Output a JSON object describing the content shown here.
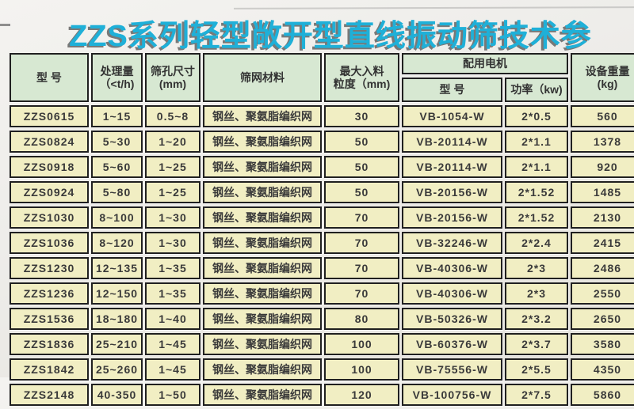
{
  "title": "ZZS系列轻型敞开型直线振动筛技术参",
  "colors": {
    "title_accent": "#1fb0d8",
    "title_shadow": "#4b4b4b",
    "header_cell_bg": "#d7e8d2",
    "data_cell_bg": "#f1eec3",
    "table_border": "#202020",
    "paper_bg": "#eeedea"
  },
  "table": {
    "headers": {
      "model": "型  号",
      "capacity_1": "处理量",
      "capacity_2": "（<t/h)",
      "aperture_1": "筛孔尺寸",
      "aperture_2": "(mm)",
      "mesh": "筛网材料",
      "feed_1": "最大入料",
      "feed_2": "粒度（mm)",
      "motor_group": "配用电机",
      "motor_model": "型  号",
      "motor_power": "功率（kw)",
      "weight_1": "设备重量",
      "weight_2": "(kg)"
    },
    "rows": [
      [
        "ZZS0615",
        "1~15",
        "0.5~8",
        "钢丝、聚氨脂编织网",
        "30",
        "VB-1054-W",
        "2*0.5",
        "560"
      ],
      [
        "ZZS0824",
        "5~30",
        "1~20",
        "钢丝、聚氨脂编织网",
        "50",
        "VB-20114-W",
        "2*1.1",
        "1378"
      ],
      [
        "ZZS0918",
        "5~60",
        "1~25",
        "钢丝、聚氨脂编织网",
        "50",
        "VB-20114-W",
        "2*1.1",
        "920"
      ],
      [
        "ZZS0924",
        "5~80",
        "1~25",
        "钢丝、聚氨脂编织网",
        "50",
        "VB-20156-W",
        "2*1.52",
        "1485"
      ],
      [
        "ZZS1030",
        "8~100",
        "1~30",
        "钢丝、聚氨脂编织网",
        "70",
        "VB-20156-W",
        "2*1.52",
        "2130"
      ],
      [
        "ZZS1036",
        "8~120",
        "1~30",
        "钢丝、聚氨脂编织网",
        "70",
        "VB-32246-W",
        "2*2.4",
        "2415"
      ],
      [
        "ZZS1230",
        "12~135",
        "1~35",
        "钢丝、聚氨脂编织网",
        "70",
        "VB-40306-W",
        "2*3",
        "2486"
      ],
      [
        "ZZS1236",
        "12~150",
        "1~35",
        "钢丝、聚氨脂编织网",
        "70",
        "VB-40306-W",
        "2*3",
        "2550"
      ],
      [
        "ZZS1536",
        "18~180",
        "1~40",
        "钢丝、聚氨脂编织网",
        "80",
        "VB-50326-W",
        "2*3.2",
        "2650"
      ],
      [
        "ZZS1836",
        "25~210",
        "1~45",
        "钢丝、聚氨脂编织网",
        "100",
        "VB-60376-W",
        "2*3.7",
        "3580"
      ],
      [
        "ZZS1842",
        "25~260",
        "1~45",
        "钢丝、聚氨脂编织网",
        "100",
        "VB-75556-W",
        "2*5.5",
        "4350"
      ],
      [
        "ZZS2148",
        "40-350",
        "1~50",
        "钢丝、聚氨脂编织网",
        "120",
        "VB-100756-W",
        "2*7.5",
        "5860"
      ]
    ]
  }
}
